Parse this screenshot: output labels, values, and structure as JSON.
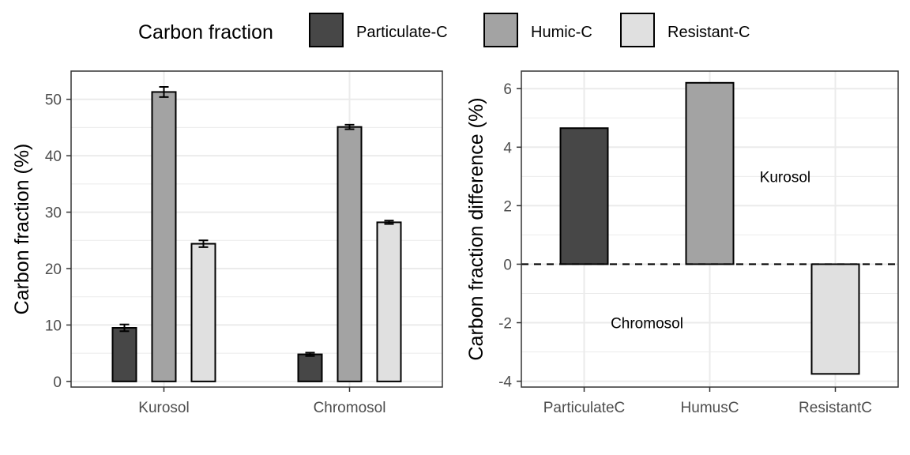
{
  "legend": {
    "title": "Carbon fraction",
    "entries": [
      {
        "label": "Particulate-C",
        "color": "#474747"
      },
      {
        "label": "Humic-C",
        "color": "#a3a3a3"
      },
      {
        "label": "Resistant-C",
        "color": "#e0e0e0"
      }
    ]
  },
  "chart_data": [
    {
      "type": "bar",
      "xlabel": "",
      "ylabel": "Carbon fraction (%)",
      "ylim": [
        -1,
        55
      ],
      "yticks": [
        0,
        10,
        20,
        30,
        40,
        50
      ],
      "grid": true,
      "legend_position": "top",
      "categories": [
        "Kurosol",
        "Chromosol"
      ],
      "series": [
        {
          "name": "Particulate-C",
          "values": [
            9.5,
            4.8
          ],
          "errors": [
            0.6,
            0.3
          ],
          "color": "#474747"
        },
        {
          "name": "Humic-C",
          "values": [
            51.3,
            45.1
          ],
          "errors": [
            0.9,
            0.4
          ],
          "color": "#a3a3a3"
        },
        {
          "name": "Resistant-C",
          "values": [
            24.4,
            28.2
          ],
          "errors": [
            0.6,
            0.3
          ],
          "color": "#e0e0e0"
        }
      ]
    },
    {
      "type": "bar",
      "xlabel": "",
      "ylabel": "Carbon fraction difference (%)",
      "ylim": [
        -4.2,
        6.6
      ],
      "yticks": [
        -4,
        -2,
        0,
        2,
        4,
        6
      ],
      "grid": true,
      "categories": [
        "ParticulateC",
        "HumusC",
        "ResistantC"
      ],
      "values": [
        4.65,
        6.2,
        -3.75
      ],
      "colors": [
        "#474747",
        "#a3a3a3",
        "#e0e0e0"
      ],
      "reference_line": {
        "y": 0,
        "style": "dashed"
      },
      "annotations": [
        {
          "text": "Kurosol",
          "x": 2.6,
          "y": 3.0
        },
        {
          "text": "Chromosol",
          "x": 1.5,
          "y": -2.0
        }
      ]
    }
  ]
}
